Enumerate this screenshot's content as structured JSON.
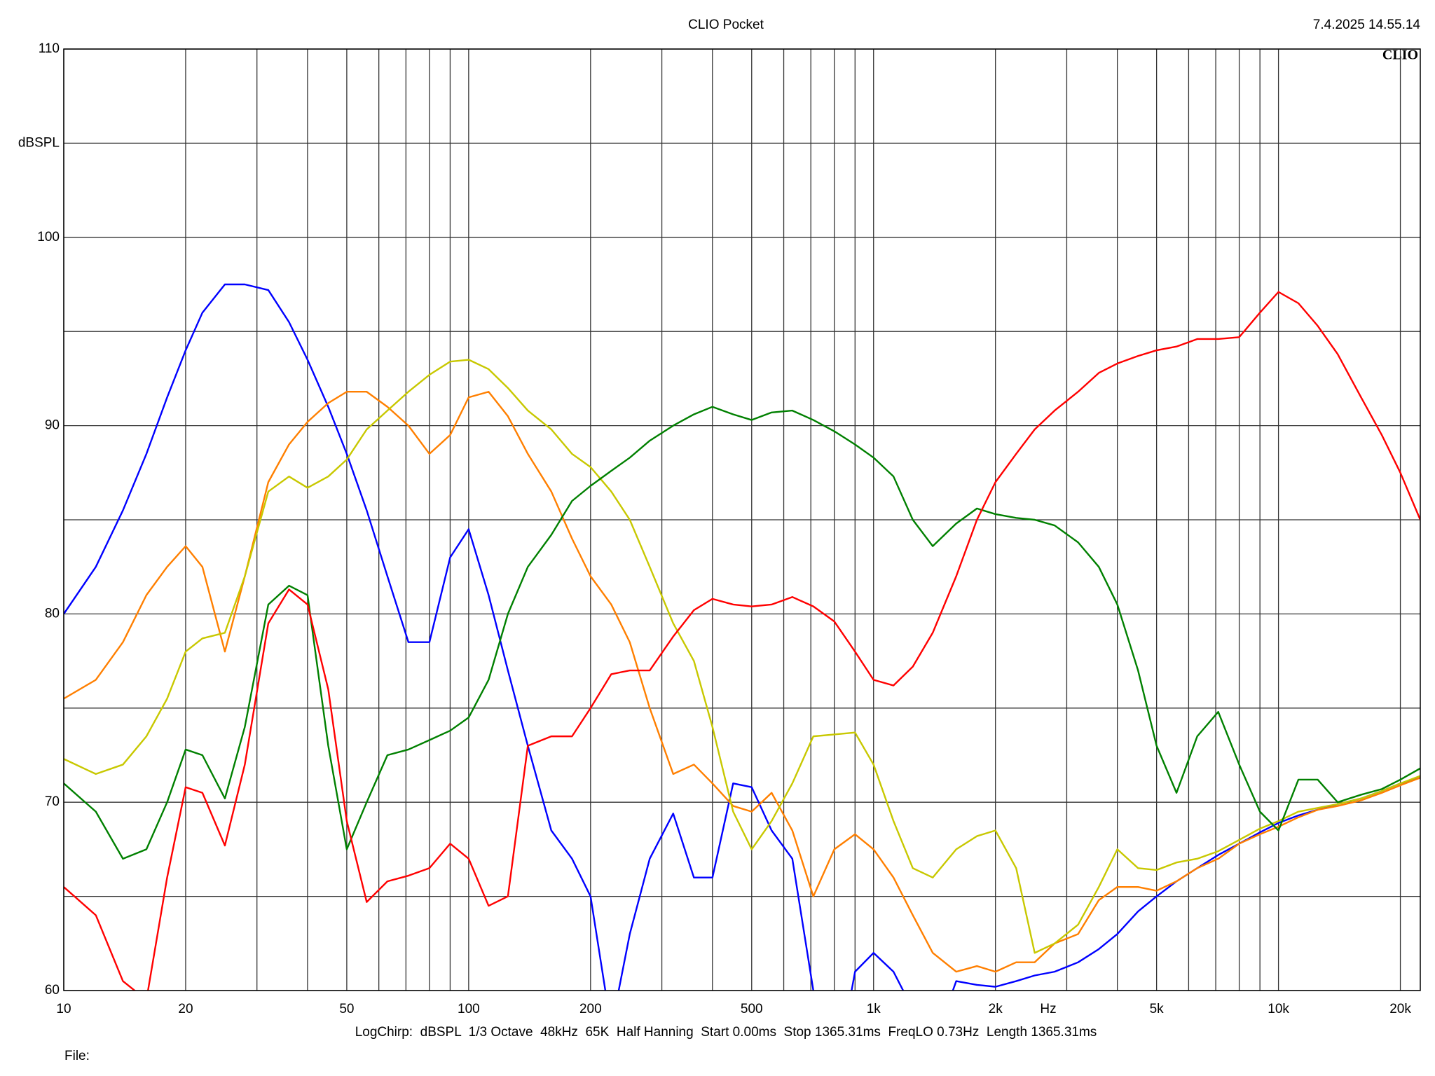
{
  "chart_data": {
    "type": "line",
    "title": "CLIO Pocket",
    "timestamp": "7.4.2025 14.55.14",
    "logo": "CLIO",
    "ylabel": "dBSPL",
    "xlabel": "Hz",
    "footer": "LogChirp:  dBSPL  1/3 Octave  48kHz  65K  Half Hanning  Start 0.00ms  Stop 1365.31ms  FreqLO 0.73Hz  Length 1365.31ms",
    "file_label": "File:",
    "xscale": "log",
    "grid": true,
    "xlim": [
      10,
      22400
    ],
    "ylim": [
      60,
      110
    ],
    "xticks": [
      10,
      20,
      50,
      100,
      200,
      500,
      {
        "value": 1000,
        "label": "1k"
      },
      {
        "value": 2000,
        "label": "2k"
      },
      {
        "value": 5000,
        "label": "5k"
      },
      {
        "value": 10000,
        "label": "10k"
      },
      {
        "value": 20000,
        "label": "20k"
      }
    ],
    "xminor": [
      30,
      40,
      60,
      70,
      80,
      90,
      300,
      400,
      600,
      700,
      800,
      900,
      3000,
      4000,
      6000,
      7000,
      8000,
      9000
    ],
    "yticks": [
      60,
      70,
      80,
      90,
      100,
      110
    ],
    "yminor": [
      65,
      75,
      85,
      95,
      105
    ],
    "x": [
      10,
      12,
      14,
      16,
      18,
      20,
      22,
      25,
      28,
      32,
      36,
      40,
      45,
      50,
      56,
      63,
      71,
      80,
      90,
      100,
      112,
      125,
      140,
      160,
      180,
      200,
      225,
      250,
      280,
      320,
      360,
      400,
      450,
      500,
      560,
      630,
      710,
      800,
      900,
      1000,
      1120,
      1250,
      1400,
      1600,
      1800,
      2000,
      2250,
      2500,
      2800,
      3200,
      3600,
      4000,
      4500,
      5000,
      5600,
      6300,
      7100,
      8000,
      9000,
      10000,
      11200,
      12500,
      14000,
      16000,
      18000,
      20000,
      22400
    ],
    "series": [
      {
        "color": "#0000ff",
        "values": [
          80,
          82.5,
          85.5,
          88.5,
          91.5,
          94,
          96,
          97.5,
          97.5,
          97.2,
          95.5,
          93.5,
          91,
          88.5,
          85.5,
          82,
          78.5,
          78.5,
          83,
          84.5,
          81,
          77,
          73,
          68.5,
          67,
          65,
          58,
          63,
          67,
          69.4,
          66,
          66,
          71,
          70.8,
          68.5,
          67,
          60,
          55,
          61,
          62,
          61,
          59,
          57,
          60.5,
          60.3,
          60.2,
          60.5,
          60.8,
          61,
          61.5,
          62.2,
          63,
          64.2,
          65,
          65.8,
          66.5,
          67.2,
          67.8,
          68.4,
          68.9,
          69.3,
          69.6,
          69.9,
          70.2,
          70.6,
          71,
          71.3
        ]
      },
      {
        "color": "#ff7f00",
        "values": [
          75.5,
          76.5,
          78.5,
          81,
          82.5,
          83.6,
          82.5,
          78,
          82,
          87,
          89,
          90.2,
          91.2,
          91.8,
          91.8,
          91,
          90,
          88.5,
          89.5,
          91.5,
          91.8,
          90.5,
          88.5,
          86.5,
          84,
          82,
          80.5,
          78.5,
          75,
          71.5,
          72,
          71,
          69.8,
          69.5,
          70.5,
          68.5,
          65,
          67.5,
          68.3,
          67.5,
          66,
          64,
          62,
          61,
          61.3,
          61,
          61.5,
          61.5,
          62.5,
          63,
          64.8,
          65.5,
          65.5,
          65.3,
          65.8,
          66.5,
          67,
          67.8,
          68.3,
          68.7,
          69.2,
          69.6,
          69.8,
          70.1,
          70.5,
          70.9,
          71.3
        ]
      },
      {
        "color": "#c8c800",
        "values": [
          72.3,
          71.5,
          72,
          73.5,
          75.5,
          78,
          78.7,
          79,
          82,
          86.5,
          87.3,
          86.7,
          87.3,
          88.2,
          89.8,
          90.8,
          91.8,
          92.7,
          93.4,
          93.5,
          93,
          92,
          90.8,
          89.8,
          88.5,
          87.8,
          86.5,
          85,
          82.5,
          79.5,
          77.5,
          74,
          69.5,
          67.5,
          69,
          71,
          73.5,
          73.6,
          73.7,
          72,
          69,
          66.5,
          66,
          67.5,
          68.2,
          68.5,
          66.5,
          62,
          62.5,
          63.5,
          65.5,
          67.5,
          66.5,
          66.4,
          66.8,
          67,
          67.4,
          68,
          68.6,
          69,
          69.5,
          69.7,
          69.9,
          70.2,
          70.6,
          71,
          71.4
        ]
      },
      {
        "color": "#008000",
        "values": [
          71,
          69.5,
          67,
          67.5,
          70,
          72.8,
          72.5,
          70.2,
          74,
          80.5,
          81.5,
          81,
          73,
          67.5,
          70,
          72.5,
          72.8,
          73.3,
          73.8,
          74.5,
          76.5,
          80,
          82.5,
          84.2,
          86,
          86.8,
          87.6,
          88.3,
          89.2,
          90,
          90.6,
          91,
          90.6,
          90.3,
          90.7,
          90.8,
          90.3,
          89.7,
          89,
          88.3,
          87.3,
          85,
          83.6,
          84.8,
          85.6,
          85.3,
          85.1,
          85,
          84.7,
          83.8,
          82.5,
          80.5,
          77,
          73,
          70.5,
          73.5,
          74.8,
          72,
          69.5,
          68.5,
          71.2,
          71.2,
          70,
          70.4,
          70.7,
          71.2,
          71.8
        ]
      },
      {
        "color": "#ff0000",
        "values": [
          65.5,
          64,
          60.5,
          59.5,
          66,
          70.8,
          70.5,
          67.7,
          72,
          79.5,
          81.3,
          80.5,
          76,
          69,
          64.7,
          65.8,
          66.1,
          66.5,
          67.8,
          67,
          64.5,
          65,
          73,
          73.5,
          73.5,
          75,
          76.8,
          77,
          77,
          78.8,
          80.2,
          80.8,
          80.5,
          80.4,
          80.5,
          80.9,
          80.4,
          79.6,
          78,
          76.5,
          76.2,
          77.2,
          79,
          82,
          85,
          87,
          88.5,
          89.8,
          90.8,
          91.8,
          92.8,
          93.3,
          93.7,
          94,
          94.2,
          94.6,
          94.6,
          94.7,
          96,
          97.1,
          96.5,
          95.3,
          93.8,
          91.5,
          89.5,
          87.5,
          85
        ]
      }
    ]
  }
}
